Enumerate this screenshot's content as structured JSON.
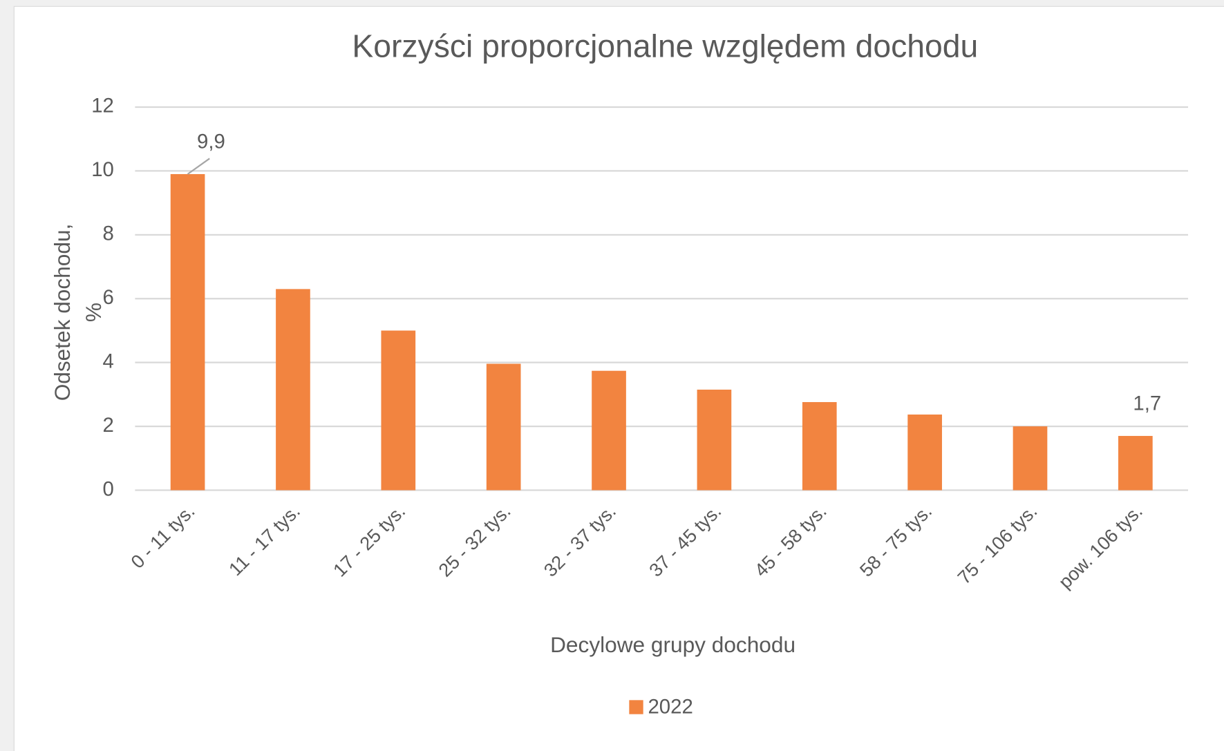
{
  "chart_data": {
    "type": "bar",
    "title": "Korzyści proporcjonalne względem dochodu",
    "x_label": "Decylowe grupy dochodu",
    "y_label": [
      "Odsetek dochodu,",
      "%"
    ],
    "categories": [
      "0 - 11 tys.",
      "11 - 17 tys.",
      "17 - 25 tys.",
      "25 - 32 tys.",
      "32 - 37 tys.",
      "37 - 45 tys.",
      "45 - 58 tys.",
      "58 - 75 tys.",
      "75 - 106 tys.",
      "pow. 106 tys."
    ],
    "series": [
      {
        "name": "2022",
        "color": "#f28440",
        "values": [
          9.9,
          6.3,
          5.0,
          3.96,
          3.74,
          3.15,
          2.76,
          2.37,
          2.0,
          1.7
        ],
        "value_labels": [
          "9,9",
          null,
          null,
          null,
          null,
          null,
          null,
          null,
          null,
          "1,7"
        ]
      }
    ],
    "ylim": [
      0,
      12
    ],
    "yticks": [
      0,
      2,
      4,
      6,
      8,
      10,
      12
    ],
    "grid": true,
    "legend": "bottom"
  }
}
